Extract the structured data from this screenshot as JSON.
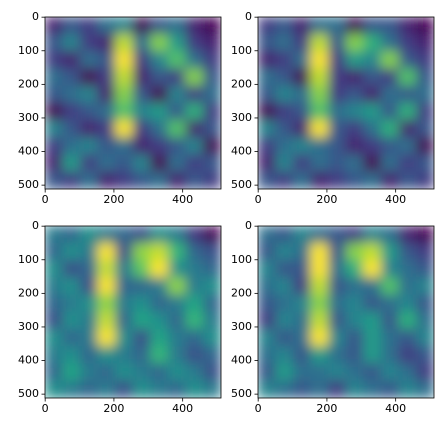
{
  "chart_data": [
    {
      "type": "heatmap",
      "colormap": "viridis",
      "xlim": [
        -0.5,
        511.5
      ],
      "ylim": [
        511.5,
        -0.5
      ],
      "xticks": [
        0,
        200,
        400
      ],
      "yticks": [
        0,
        100,
        200,
        300,
        400,
        500
      ],
      "z": [
        [
          0.35,
          0.45,
          0.4,
          0.5,
          0.55,
          0.3,
          0.45,
          0.5,
          0.35,
          0.3
        ],
        [
          0.45,
          0.55,
          0.4,
          0.35,
          0.8,
          0.5,
          0.75,
          0.6,
          0.4,
          0.35
        ],
        [
          0.4,
          0.35,
          0.5,
          0.45,
          0.85,
          0.4,
          0.55,
          0.7,
          0.5,
          0.4
        ],
        [
          0.5,
          0.45,
          0.3,
          0.4,
          0.8,
          0.35,
          0.45,
          0.4,
          0.75,
          0.45
        ],
        [
          0.45,
          0.5,
          0.55,
          0.35,
          0.75,
          0.45,
          0.3,
          0.55,
          0.4,
          0.5
        ],
        [
          0.3,
          0.4,
          0.45,
          0.5,
          0.7,
          0.55,
          0.6,
          0.45,
          0.65,
          0.4
        ],
        [
          0.55,
          0.45,
          0.35,
          0.4,
          0.85,
          0.4,
          0.5,
          0.7,
          0.35,
          0.45
        ],
        [
          0.4,
          0.5,
          0.55,
          0.45,
          0.5,
          0.35,
          0.4,
          0.45,
          0.55,
          0.3
        ],
        [
          0.35,
          0.6,
          0.4,
          0.5,
          0.45,
          0.55,
          0.3,
          0.5,
          0.4,
          0.45
        ],
        [
          0.45,
          0.4,
          0.5,
          0.35,
          0.4,
          0.45,
          0.5,
          0.35,
          0.45,
          0.4
        ]
      ]
    },
    {
      "type": "heatmap",
      "colormap": "viridis",
      "xlim": [
        -0.5,
        511.5
      ],
      "ylim": [
        511.5,
        -0.5
      ],
      "xticks": [
        0,
        200,
        400
      ],
      "yticks": [
        0,
        100,
        200,
        300,
        400,
        500
      ],
      "z": [
        [
          0.4,
          0.45,
          0.35,
          0.5,
          0.5,
          0.3,
          0.45,
          0.45,
          0.35,
          0.3
        ],
        [
          0.45,
          0.5,
          0.4,
          0.8,
          0.45,
          0.75,
          0.65,
          0.5,
          0.4,
          0.35
        ],
        [
          0.35,
          0.4,
          0.5,
          0.85,
          0.4,
          0.6,
          0.55,
          0.75,
          0.45,
          0.4
        ],
        [
          0.5,
          0.45,
          0.3,
          0.8,
          0.4,
          0.35,
          0.45,
          0.4,
          0.7,
          0.45
        ],
        [
          0.45,
          0.55,
          0.5,
          0.75,
          0.4,
          0.45,
          0.35,
          0.5,
          0.45,
          0.5
        ],
        [
          0.3,
          0.4,
          0.45,
          0.7,
          0.5,
          0.55,
          0.6,
          0.45,
          0.65,
          0.4
        ],
        [
          0.55,
          0.45,
          0.35,
          0.85,
          0.45,
          0.4,
          0.5,
          0.65,
          0.35,
          0.45
        ],
        [
          0.4,
          0.5,
          0.55,
          0.5,
          0.45,
          0.35,
          0.4,
          0.45,
          0.5,
          0.3
        ],
        [
          0.35,
          0.55,
          0.4,
          0.5,
          0.45,
          0.5,
          0.3,
          0.5,
          0.4,
          0.45
        ],
        [
          0.45,
          0.4,
          0.5,
          0.35,
          0.4,
          0.45,
          0.5,
          0.35,
          0.45,
          0.4
        ]
      ]
    },
    {
      "type": "heatmap",
      "colormap": "viridis",
      "xlim": [
        -0.5,
        511.5
      ],
      "ylim": [
        511.5,
        -0.5
      ],
      "xticks": [
        0,
        200,
        400
      ],
      "yticks": [
        0,
        100,
        200,
        300,
        400,
        500
      ],
      "z": [
        [
          0.45,
          0.4,
          0.5,
          0.45,
          0.4,
          0.35,
          0.5,
          0.45,
          0.3,
          0.2
        ],
        [
          0.4,
          0.5,
          0.45,
          0.8,
          0.35,
          0.7,
          0.75,
          0.6,
          0.4,
          0.35
        ],
        [
          0.5,
          0.35,
          0.4,
          0.75,
          0.45,
          0.65,
          0.8,
          0.5,
          0.45,
          0.4
        ],
        [
          0.45,
          0.5,
          0.35,
          0.8,
          0.4,
          0.4,
          0.45,
          0.7,
          0.45,
          0.5
        ],
        [
          0.4,
          0.45,
          0.5,
          0.7,
          0.45,
          0.5,
          0.4,
          0.45,
          0.55,
          0.4
        ],
        [
          0.35,
          0.5,
          0.45,
          0.75,
          0.4,
          0.55,
          0.5,
          0.4,
          0.6,
          0.45
        ],
        [
          0.5,
          0.4,
          0.45,
          0.8,
          0.5,
          0.35,
          0.55,
          0.45,
          0.4,
          0.5
        ],
        [
          0.45,
          0.5,
          0.4,
          0.5,
          0.45,
          0.4,
          0.6,
          0.45,
          0.35,
          0.4
        ],
        [
          0.4,
          0.55,
          0.45,
          0.4,
          0.5,
          0.45,
          0.4,
          0.5,
          0.45,
          0.35
        ],
        [
          0.5,
          0.45,
          0.4,
          0.45,
          0.35,
          0.5,
          0.45,
          0.4,
          0.5,
          0.45
        ]
      ]
    },
    {
      "type": "heatmap",
      "colormap": "viridis",
      "xlim": [
        -0.5,
        511.5
      ],
      "ylim": [
        511.5,
        -0.5
      ],
      "xticks": [
        0,
        200,
        400
      ],
      "yticks": [
        0,
        100,
        200,
        300,
        400,
        500
      ],
      "z": [
        [
          0.45,
          0.4,
          0.5,
          0.45,
          0.4,
          0.35,
          0.5,
          0.45,
          0.3,
          0.25
        ],
        [
          0.4,
          0.5,
          0.45,
          0.8,
          0.4,
          0.7,
          0.75,
          0.55,
          0.4,
          0.35
        ],
        [
          0.5,
          0.4,
          0.4,
          0.8,
          0.45,
          0.6,
          0.8,
          0.5,
          0.45,
          0.4
        ],
        [
          0.45,
          0.5,
          0.35,
          0.75,
          0.4,
          0.45,
          0.45,
          0.65,
          0.45,
          0.5
        ],
        [
          0.4,
          0.45,
          0.5,
          0.7,
          0.45,
          0.5,
          0.4,
          0.45,
          0.5,
          0.4
        ],
        [
          0.35,
          0.5,
          0.45,
          0.75,
          0.4,
          0.5,
          0.55,
          0.4,
          0.6,
          0.45
        ],
        [
          0.5,
          0.4,
          0.45,
          0.8,
          0.5,
          0.4,
          0.55,
          0.45,
          0.4,
          0.5
        ],
        [
          0.45,
          0.5,
          0.4,
          0.55,
          0.45,
          0.4,
          0.55,
          0.45,
          0.35,
          0.4
        ],
        [
          0.4,
          0.55,
          0.45,
          0.45,
          0.5,
          0.45,
          0.4,
          0.5,
          0.45,
          0.35
        ],
        [
          0.5,
          0.45,
          0.4,
          0.45,
          0.35,
          0.5,
          0.45,
          0.4,
          0.5,
          0.45
        ]
      ]
    }
  ]
}
